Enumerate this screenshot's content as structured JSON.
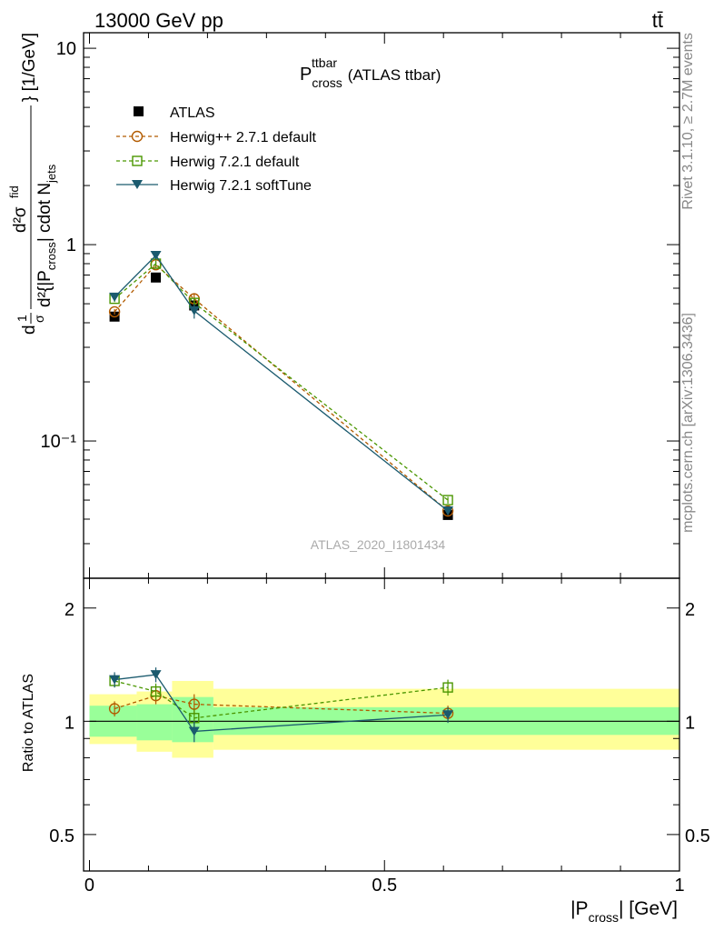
{
  "header": {
    "left": "13000 GeV pp",
    "right": "tt̄"
  },
  "side": {
    "rivet": "Rivet 3.1.10, ≥ 2.7M events",
    "mcplots": "mcplots.cern.ch [arXiv:1306.3436]"
  },
  "colors": {
    "atlas": "#000000",
    "herwigpp": "#b25b00",
    "herwig721": "#4a9600",
    "softtune": "#1a5a6e",
    "band_inner": "#99ff99",
    "band_outer": "#ffff99"
  },
  "chart_data": [
    {
      "type": "line",
      "title": "P_cross^ttbar (ATLAS ttbar)",
      "title_main": "P",
      "title_sub": "cross",
      "title_sup": "ttbar",
      "title_rest": "(ATLAS ttbar)",
      "ylabel": "d²σ^fid / d²{|P_cross| cdot N_jets} [1/GeV]",
      "ylabel_parts": {
        "frac_num": "d²σ",
        "frac_num_sup": "fid",
        "frac_den": "d²{|P",
        "frac_den_sub": "cross",
        "frac_den_rest": "| cdot N",
        "frac_den_sub2": "jets",
        "prefix": "d",
        "prefix_frac": "1",
        "prefix_den": "σ",
        "unit": "} [1/GeV]"
      },
      "yscale": "log",
      "ylim": [
        0.02,
        12
      ],
      "xlim": [
        -0.01,
        1.0
      ],
      "ytick_labels": [
        "10",
        "1",
        "10⁻¹"
      ],
      "watermark": "ATLAS_2020_I1801434",
      "legend_position": "top-left",
      "x": [
        0.0425,
        0.1125,
        0.1775,
        0.6075
      ],
      "series": [
        {
          "name": "ATLAS",
          "values": [
            0.43,
            0.68,
            0.49,
            0.042
          ],
          "errors": [
            0.02,
            0.03,
            0.02,
            0.002
          ]
        },
        {
          "name": "Herwig++ 2.7.1 default",
          "values": [
            0.455,
            0.79,
            0.53,
            0.044
          ],
          "errors": [
            0.015,
            0.03,
            0.03,
            0.002
          ]
        },
        {
          "name": "Herwig 7.2.1 default",
          "values": [
            0.53,
            0.8,
            0.505,
            0.05
          ],
          "errors": [
            0.02,
            0.03,
            0.03,
            0.002
          ]
        },
        {
          "name": "Herwig 7.2.1 softTune",
          "values": [
            0.54,
            0.88,
            0.46,
            0.044
          ],
          "errors": [
            0.025,
            0.04,
            0.04,
            0.002
          ]
        }
      ]
    },
    {
      "type": "line",
      "ylabel": "Ratio to ATLAS",
      "xlabel": "|P_cross| [GeV]",
      "xlabel_main": "|P",
      "xlabel_sub": "cross",
      "xlabel_rest": "| [GeV]",
      "yscale": "log",
      "ylim": [
        0.4,
        2.4
      ],
      "xlim": [
        -0.01,
        1.0
      ],
      "x_ticks": [
        0,
        0.5,
        1
      ],
      "x_tick_labels": [
        "0",
        "0.5",
        "1"
      ],
      "y_ticks": [
        0.5,
        1,
        2
      ],
      "y_tick_labels": [
        "0.5",
        "1",
        "2"
      ],
      "bins": [
        {
          "lo": 0.0,
          "hi": 0.08,
          "inner": [
            0.91,
            1.1
          ],
          "outer": [
            0.87,
            1.18
          ]
        },
        {
          "lo": 0.08,
          "hi": 0.14,
          "inner": [
            0.89,
            1.11
          ],
          "outer": [
            0.83,
            1.2
          ]
        },
        {
          "lo": 0.14,
          "hi": 0.21,
          "inner": [
            0.88,
            1.16
          ],
          "outer": [
            0.8,
            1.28
          ]
        },
        {
          "lo": 0.21,
          "hi": 1.0,
          "inner": [
            0.92,
            1.09
          ],
          "outer": [
            0.84,
            1.22
          ]
        }
      ],
      "x": [
        0.0425,
        0.1125,
        0.1775,
        0.6075
      ],
      "series": [
        {
          "name": "Herwig++ 2.7.1 default",
          "values": [
            1.08,
            1.17,
            1.11,
            1.05
          ],
          "errors": [
            0.05,
            0.06,
            0.07,
            0.05
          ]
        },
        {
          "name": "Herwig 7.2.1 default",
          "values": [
            1.28,
            1.2,
            1.02,
            1.23
          ],
          "errors": [
            0.05,
            0.06,
            0.06,
            0.06
          ]
        },
        {
          "name": "Herwig 7.2.1 softTune",
          "values": [
            1.29,
            1.33,
            0.94,
            1.04
          ],
          "errors": [
            0.06,
            0.06,
            0.06,
            0.05
          ]
        }
      ]
    }
  ]
}
